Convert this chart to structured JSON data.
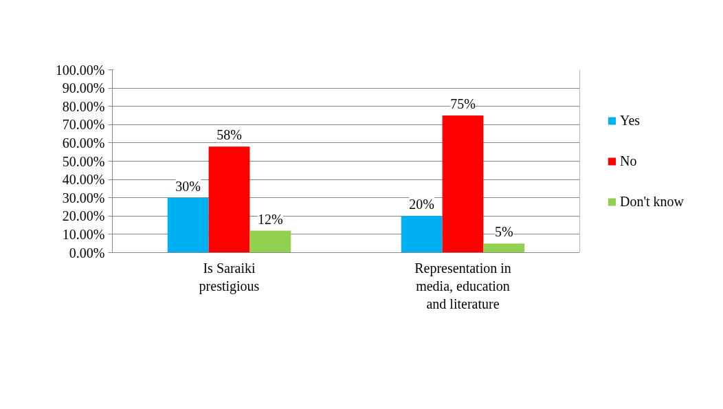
{
  "chart_data": {
    "type": "bar",
    "categories": [
      "Is Saraiki prestigious",
      "Representation in media, education and literature"
    ],
    "series": [
      {
        "name": "Yes",
        "color": "#00b0f0",
        "values": [
          30,
          20
        ],
        "value_labels": [
          "30%",
          "20%"
        ]
      },
      {
        "name": "No",
        "color": "#ff0000",
        "values": [
          58,
          75
        ],
        "value_labels": [
          "58%",
          "75%"
        ]
      },
      {
        "name": "Don't know",
        "color": "#92d050",
        "values": [
          12,
          5
        ],
        "value_labels": [
          "12%",
          "5%"
        ]
      }
    ],
    "ylim": [
      0,
      100
    ],
    "yticks": [
      {
        "value": 0,
        "label": "0.00%"
      },
      {
        "value": 10,
        "label": "10.00%"
      },
      {
        "value": 20,
        "label": "20.00%"
      },
      {
        "value": 30,
        "label": "30.00%"
      },
      {
        "value": 40,
        "label": "40.00%"
      },
      {
        "value": 50,
        "label": "50.00%"
      },
      {
        "value": 60,
        "label": "60.00%"
      },
      {
        "value": 70,
        "label": "70.00%"
      },
      {
        "value": 80,
        "label": "80.00%"
      },
      {
        "value": 90,
        "label": "90.00%"
      },
      {
        "value": 100,
        "label": "100.00%"
      }
    ],
    "grid": "y",
    "legend": "right"
  }
}
